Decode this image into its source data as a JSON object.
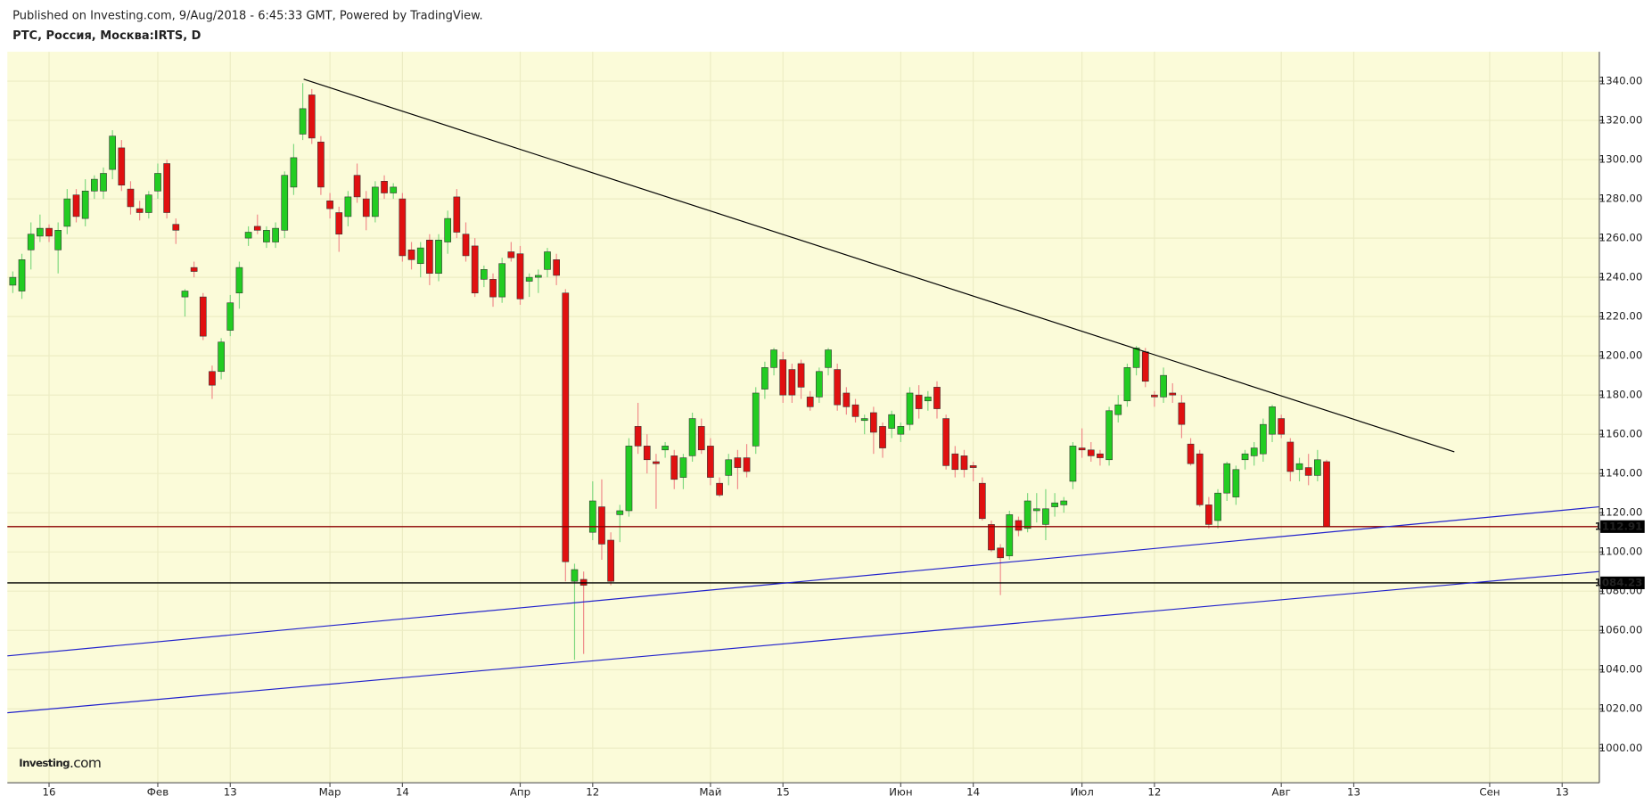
{
  "chart_data": {
    "type": "candlestick",
    "header": "Published on Investing.com, 9/Aug/2018 - 6:45:33 GMT, Powered by TradingView.",
    "title": "РТС, Россия, Москва:IRTS, D",
    "logo": {
      "name": "Investing",
      "suffix": ".com"
    },
    "up_color": "#22cc22",
    "down_color": "#e01010",
    "background": "#fbfbd9",
    "grid": true,
    "xlim": [
      -0.6,
      175.1
    ],
    "xticks": [
      {
        "value": 4,
        "label": "16"
      },
      {
        "value": 16,
        "label": "Фев"
      },
      {
        "value": 24,
        "label": "13"
      },
      {
        "value": 35,
        "label": "Мар"
      },
      {
        "value": 43,
        "label": "14"
      },
      {
        "value": 56,
        "label": "Апр"
      },
      {
        "value": 64,
        "label": "12"
      },
      {
        "value": 77,
        "label": "Май"
      },
      {
        "value": 85,
        "label": "15"
      },
      {
        "value": 98,
        "label": "Июн"
      },
      {
        "value": 106,
        "label": "14"
      },
      {
        "value": 118,
        "label": "Июл"
      },
      {
        "value": 126,
        "label": "12"
      },
      {
        "value": 140,
        "label": "Авг"
      },
      {
        "value": 148,
        "label": "13"
      },
      {
        "value": 163,
        "label": "Сен"
      },
      {
        "value": 171,
        "label": "13"
      }
    ],
    "ylim": [
      982.3,
      1355
    ],
    "yticks": [
      {
        "value": 1000,
        "label": "1000.00"
      },
      {
        "value": 1020,
        "label": "1020.00"
      },
      {
        "value": 1040,
        "label": "1040.00"
      },
      {
        "value": 1060,
        "label": "1060.00"
      },
      {
        "value": 1080,
        "label": "1080.00"
      },
      {
        "value": 1100,
        "label": "1100.00"
      },
      {
        "value": 1120,
        "label": "1120.00"
      },
      {
        "value": 1140,
        "label": "1140.00"
      },
      {
        "value": 1160,
        "label": "1160.00"
      },
      {
        "value": 1180,
        "label": "1180.00"
      },
      {
        "value": 1200,
        "label": "1200.00"
      },
      {
        "value": 1220,
        "label": "1220.00"
      },
      {
        "value": 1240,
        "label": "1240.00"
      },
      {
        "value": 1260,
        "label": "1260.00"
      },
      {
        "value": 1280,
        "label": "1280.00"
      },
      {
        "value": 1300,
        "label": "1300.00"
      },
      {
        "value": 1320,
        "label": "1320.00"
      },
      {
        "value": 1340,
        "label": "1340.00"
      }
    ],
    "open": [
      1236,
      1233,
      1254,
      1261,
      1265,
      1254,
      1266,
      1282,
      1270,
      1284,
      1284,
      1295,
      1306,
      1285,
      1275,
      1273,
      1284,
      1298,
      1267,
      1230,
      1245,
      1230,
      1192,
      1192,
      1213,
      1232,
      1260,
      1266,
      1258,
      1258,
      1264,
      1286,
      1313,
      1333,
      1309,
      1279,
      1273,
      1271,
      1292,
      1280,
      1271,
      1289,
      1283,
      1280,
      1254,
      1247,
      1259,
      1242,
      1258,
      1281,
      1262,
      1256,
      1239,
      1239,
      1230,
      1253,
      1252,
      1238,
      1240,
      1244,
      1249,
      1232,
      1085,
      1086,
      1110,
      1123,
      1106,
      1119,
      1121,
      1164,
      1154,
      1146,
      1152,
      1149,
      1138,
      1149,
      1164,
      1154,
      1135,
      1139,
      1148,
      1148,
      1154,
      1183,
      1194,
      1198,
      1193,
      1196,
      1179,
      1179,
      1194,
      1193,
      1181,
      1175,
      1167,
      1171,
      1164,
      1163,
      1160,
      1165,
      1180,
      1177,
      1184,
      1168,
      1150,
      1149,
      1144,
      1135,
      1114,
      1102,
      1098,
      1116,
      1112,
      1121,
      1114,
      1123,
      1124,
      1136,
      1153,
      1152,
      1150,
      1147,
      1170,
      1177,
      1194,
      1202,
      1180,
      1179,
      1181,
      1176,
      1155,
      1150,
      1124,
      1116,
      1130,
      1128,
      1147,
      1149,
      1150,
      1160,
      1168,
      1156,
      1142,
      1143,
      1139,
      1146
    ],
    "high": [
      1243,
      1252,
      1268,
      1272,
      1267,
      1268,
      1285,
      1285,
      1290,
      1292,
      1296,
      1315,
      1310,
      1289,
      1279,
      1284,
      1298,
      1300,
      1270,
      1234,
      1248,
      1232,
      1195,
      1209,
      1231,
      1248,
      1266,
      1272,
      1266,
      1268,
      1294,
      1308,
      1339,
      1336,
      1312,
      1283,
      1276,
      1284,
      1298,
      1284,
      1289,
      1292,
      1288,
      1283,
      1258,
      1258,
      1262,
      1262,
      1274,
      1285,
      1268,
      1260,
      1246,
      1242,
      1250,
      1258,
      1256,
      1242,
      1244,
      1255,
      1252,
      1234,
      1094,
      1090,
      1136,
      1137,
      1110,
      1124,
      1158,
      1176,
      1160,
      1150,
      1156,
      1152,
      1150,
      1171,
      1168,
      1158,
      1138,
      1150,
      1152,
      1155,
      1184,
      1197,
      1204,
      1202,
      1196,
      1198,
      1182,
      1194,
      1204,
      1196,
      1184,
      1178,
      1170,
      1174,
      1166,
      1172,
      1166,
      1184,
      1185,
      1182,
      1187,
      1170,
      1154,
      1152,
      1146,
      1138,
      1116,
      1104,
      1121,
      1118,
      1130,
      1130,
      1132,
      1130,
      1128,
      1156,
      1163,
      1156,
      1152,
      1174,
      1180,
      1196,
      1205,
      1204,
      1182,
      1194,
      1186,
      1180,
      1158,
      1152,
      1128,
      1132,
      1146,
      1144,
      1152,
      1156,
      1168,
      1175,
      1170,
      1158,
      1148,
      1150,
      1152,
      1147
    ],
    "low": [
      1232,
      1229,
      1244,
      1258,
      1258,
      1242,
      1262,
      1268,
      1266,
      1280,
      1280,
      1290,
      1284,
      1272,
      1269,
      1270,
      1280,
      1270,
      1257,
      1220,
      1240,
      1208,
      1178,
      1188,
      1210,
      1224,
      1256,
      1262,
      1255,
      1255,
      1260,
      1282,
      1310,
      1308,
      1282,
      1270,
      1253,
      1266,
      1278,
      1264,
      1268,
      1280,
      1280,
      1248,
      1244,
      1240,
      1236,
      1238,
      1252,
      1260,
      1248,
      1230,
      1235,
      1225,
      1227,
      1248,
      1226,
      1230,
      1232,
      1240,
      1236,
      1085,
      1045,
      1048,
      1106,
      1096,
      1083,
      1105,
      1118,
      1150,
      1140,
      1122,
      1148,
      1132,
      1132,
      1146,
      1150,
      1134,
      1128,
      1134,
      1132,
      1138,
      1150,
      1178,
      1190,
      1176,
      1176,
      1178,
      1172,
      1176,
      1190,
      1172,
      1170,
      1166,
      1160,
      1150,
      1148,
      1158,
      1156,
      1162,
      1168,
      1172,
      1168,
      1142,
      1138,
      1138,
      1136,
      1116,
      1100,
      1078,
      1096,
      1108,
      1110,
      1115,
      1106,
      1118,
      1120,
      1132,
      1148,
      1146,
      1144,
      1144,
      1166,
      1174,
      1190,
      1184,
      1174,
      1176,
      1176,
      1158,
      1144,
      1123,
      1112,
      1112,
      1126,
      1124,
      1142,
      1144,
      1146,
      1156,
      1158,
      1136,
      1136,
      1134,
      1136,
      1112.91
    ],
    "close": [
      1240,
      1249,
      1262,
      1265,
      1261,
      1264,
      1280,
      1271,
      1284,
      1290,
      1293,
      1312,
      1287,
      1276,
      1273,
      1282,
      1293,
      1273,
      1264,
      1233,
      1243,
      1210,
      1185,
      1207,
      1227,
      1245,
      1263,
      1264,
      1264,
      1265,
      1292,
      1301,
      1326,
      1311,
      1286,
      1275,
      1262,
      1281,
      1281,
      1271,
      1286,
      1283,
      1286,
      1251,
      1249,
      1255,
      1242,
      1259,
      1270,
      1263,
      1251,
      1232,
      1244,
      1230,
      1247,
      1250,
      1229,
      1240,
      1241,
      1253,
      1241,
      1095,
      1091,
      1083,
      1126,
      1104,
      1085,
      1121,
      1154,
      1154,
      1147,
      1145,
      1154,
      1137,
      1148,
      1168,
      1152,
      1138,
      1129,
      1147,
      1143,
      1141,
      1181,
      1194,
      1203,
      1180,
      1180,
      1184,
      1174,
      1192,
      1203,
      1175,
      1174,
      1169,
      1168,
      1161,
      1153,
      1170,
      1164,
      1181,
      1173,
      1179,
      1173,
      1144,
      1142,
      1142,
      1143,
      1117,
      1101,
      1097,
      1119,
      1111,
      1126,
      1122,
      1122,
      1125,
      1126,
      1154,
      1152,
      1149,
      1148,
      1172,
      1175,
      1194,
      1204,
      1187,
      1179,
      1190,
      1180,
      1165,
      1145,
      1124,
      1114,
      1130,
      1145,
      1142,
      1150,
      1153,
      1165,
      1174,
      1160,
      1141,
      1145,
      1139,
      1147,
      1112.91
    ],
    "trendlines": [
      {
        "color": "#000000",
        "x": [
          32.1,
          159.1
        ],
        "values": [
          1341,
          1151
        ]
      },
      {
        "color": "#2222cc",
        "x": [
          -0.6,
          175.1
        ],
        "values": [
          1047,
          1123
        ]
      },
      {
        "color": "#2222cc",
        "x": [
          -0.6,
          175.1
        ],
        "values": [
          1018,
          1090
        ]
      }
    ],
    "levels": [
      {
        "value": 1112.91,
        "color": "#8b0000"
      },
      {
        "value": 1084.23,
        "color": "#000000"
      }
    ]
  }
}
